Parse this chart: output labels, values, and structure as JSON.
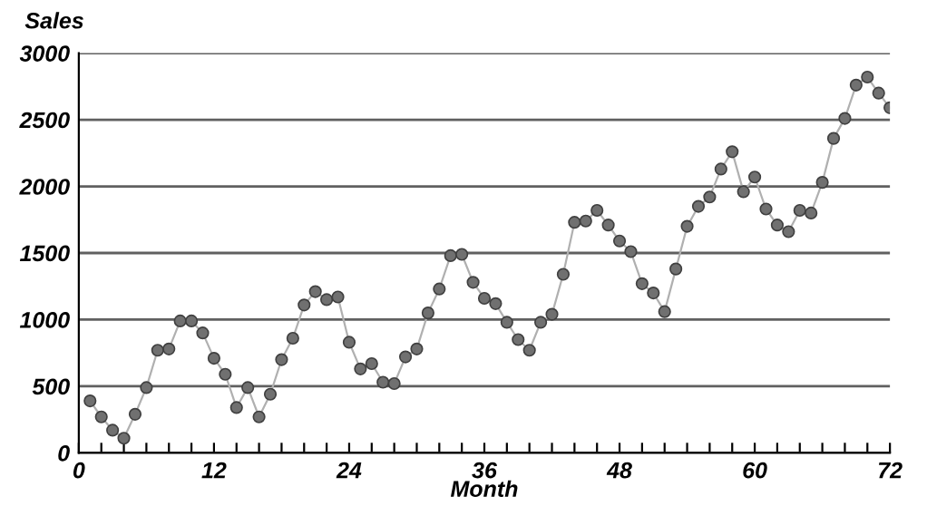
{
  "chart_data": {
    "type": "line",
    "xlabel": "Month",
    "ylabel": "Sales",
    "x": [
      1,
      2,
      3,
      4,
      5,
      6,
      7,
      8,
      9,
      10,
      11,
      12,
      13,
      14,
      15,
      16,
      17,
      18,
      19,
      20,
      21,
      22,
      23,
      24,
      25,
      26,
      27,
      28,
      29,
      30,
      31,
      32,
      33,
      34,
      35,
      36,
      37,
      38,
      39,
      40,
      41,
      42,
      43,
      44,
      45,
      46,
      47,
      48,
      49,
      50,
      51,
      52,
      53,
      54,
      55,
      56,
      57,
      58,
      59,
      60,
      61,
      62,
      63,
      64,
      65,
      66,
      67,
      68,
      69,
      70,
      71,
      72
    ],
    "series": [
      {
        "color": "#707070",
        "values": [
          390,
          270,
          170,
          110,
          290,
          490,
          770,
          780,
          990,
          990,
          900,
          710,
          590,
          340,
          490,
          270,
          440,
          700,
          860,
          1110,
          1210,
          1150,
          1170,
          830,
          630,
          670,
          530,
          520,
          720,
          780,
          1050,
          1230,
          1480,
          1490,
          1280,
          1160,
          1120,
          980,
          850,
          770,
          980,
          1040,
          1340,
          1730,
          1740,
          1820,
          1710,
          1590,
          1510,
          1270,
          1200,
          1060,
          1380,
          1700,
          1850,
          1920,
          2130,
          2260,
          1960,
          2070,
          1830,
          1710,
          1660,
          1820,
          1800,
          2030,
          2360,
          2510,
          2760,
          2820,
          2700,
          2590
        ]
      }
    ],
    "xlim": [
      0,
      72
    ],
    "xticks": [
      0,
      {
        "value": 2,
        "label": null
      },
      {
        "value": 4,
        "label": null
      },
      {
        "value": 6,
        "label": null
      },
      {
        "value": 8,
        "label": null
      },
      {
        "value": 10,
        "label": null
      },
      12,
      {
        "value": 14,
        "label": null
      },
      {
        "value": 16,
        "label": null
      },
      {
        "value": 18,
        "label": null
      },
      {
        "value": 20,
        "label": null
      },
      {
        "value": 22,
        "label": null
      },
      24,
      {
        "value": 26,
        "label": null
      },
      {
        "value": 28,
        "label": null
      },
      {
        "value": 30,
        "label": null
      },
      {
        "value": 32,
        "label": null
      },
      {
        "value": 34,
        "label": null
      },
      36,
      {
        "value": 38,
        "label": null
      },
      {
        "value": 40,
        "label": null
      },
      {
        "value": 42,
        "label": null
      },
      {
        "value": 44,
        "label": null
      },
      {
        "value": 46,
        "label": null
      },
      48,
      {
        "value": 50,
        "label": null
      },
      {
        "value": 52,
        "label": null
      },
      {
        "value": 54,
        "label": null
      },
      {
        "value": 56,
        "label": null
      },
      {
        "value": 58,
        "label": null
      },
      60,
      {
        "value": 62,
        "label": null
      },
      {
        "value": 64,
        "label": null
      },
      {
        "value": 66,
        "label": null
      },
      {
        "value": 68,
        "label": null
      },
      {
        "value": 70,
        "label": null
      },
      72
    ],
    "ylim": [
      0,
      3000
    ],
    "yticks": [
      0,
      500,
      1000,
      1500,
      2000,
      2500,
      3000
    ],
    "grid": "y",
    "marker": "circle",
    "line_style": "solid",
    "legend": false
  }
}
